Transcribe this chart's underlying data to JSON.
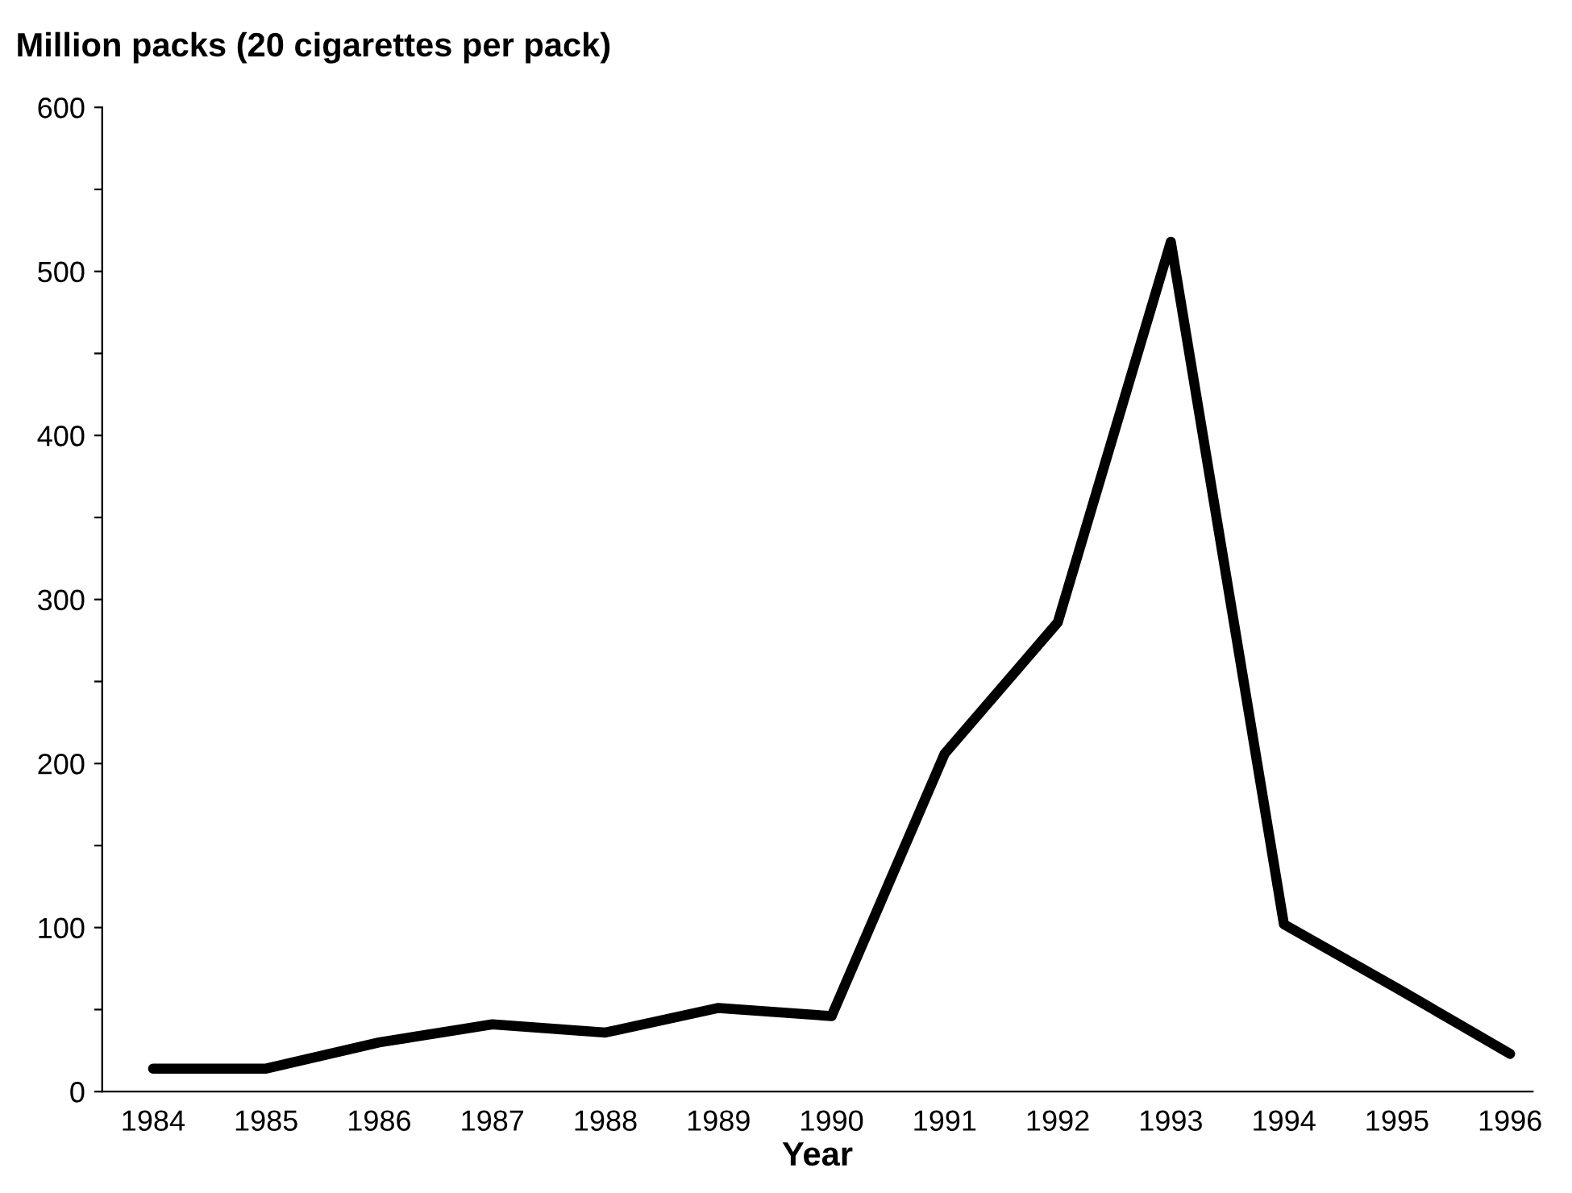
{
  "chart_data": {
    "type": "line",
    "title": "Million packs (20 cigarettes per pack)",
    "xlabel": "Year",
    "categories": [
      "1984",
      "1985",
      "1986",
      "1987",
      "1988",
      "1989",
      "1990",
      "1991",
      "1992",
      "1993",
      "1994",
      "1995",
      "1996"
    ],
    "series": [
      {
        "color": "#000000",
        "values": [
          14,
          14,
          30,
          41,
          36,
          51,
          46,
          206,
          286,
          518,
          102,
          63,
          23
        ]
      }
    ],
    "ylim": [
      0,
      600
    ],
    "yticks": [
      0,
      {
        "value": 50,
        "label": null
      },
      100,
      {
        "value": 150,
        "label": null
      },
      200,
      {
        "value": 250,
        "label": null
      },
      300,
      {
        "value": 350,
        "label": null
      },
      400,
      {
        "value": 450,
        "label": null
      },
      500,
      {
        "value": 550,
        "label": null
      },
      600
    ],
    "grid": false,
    "legend": false,
    "marker": "none",
    "line_style": "solid"
  }
}
